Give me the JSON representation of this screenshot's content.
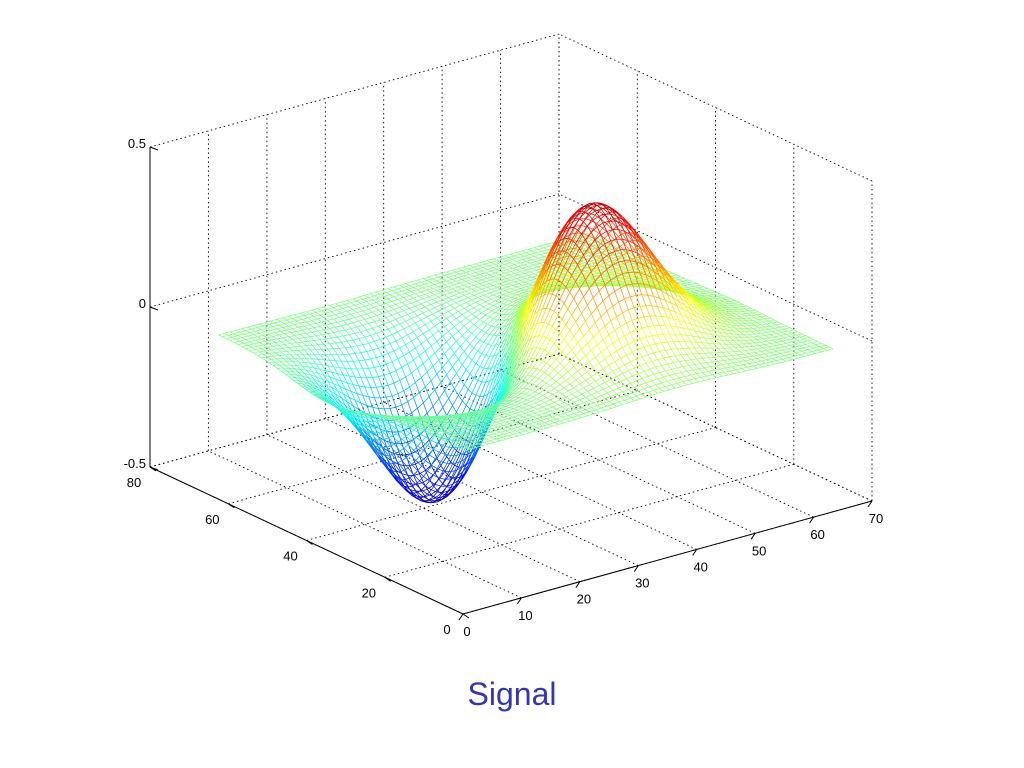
{
  "caption": "Signal",
  "colors": {
    "caption": "#3333bb",
    "colormap": "jet"
  },
  "chart_data": {
    "type": "surface-mesh",
    "title": "",
    "xlabel": "",
    "ylabel": "",
    "zlabel": "",
    "grid": true,
    "x_range": [
      0,
      70
    ],
    "y_range": [
      0,
      80
    ],
    "z_range": [
      -0.5,
      0.5
    ],
    "x_ticks": [
      0,
      10,
      20,
      30,
      40,
      50,
      60,
      70
    ],
    "y_ticks": [
      0,
      20,
      40,
      60,
      80
    ],
    "z_ticks": [
      -0.5,
      0,
      0.5
    ],
    "x_tick_labels": [
      "0",
      "10",
      "20",
      "30",
      "40",
      "50",
      "60",
      "70"
    ],
    "y_tick_labels": [
      "0",
      "20",
      "40",
      "60",
      "80"
    ],
    "z_tick_labels": [
      "-0.5",
      "0",
      "0.5"
    ],
    "surface": {
      "x_extent": [
        1,
        64
      ],
      "y_extent": [
        1,
        64
      ],
      "base_z": 0,
      "features": [
        {
          "kind": "peak",
          "x_center": 38,
          "y_center": 25,
          "amplitude": 0.47,
          "width": 9
        },
        {
          "kind": "trough",
          "x_center": 20,
          "y_center": 36,
          "amplitude": -0.48,
          "width": 9
        }
      ]
    }
  }
}
